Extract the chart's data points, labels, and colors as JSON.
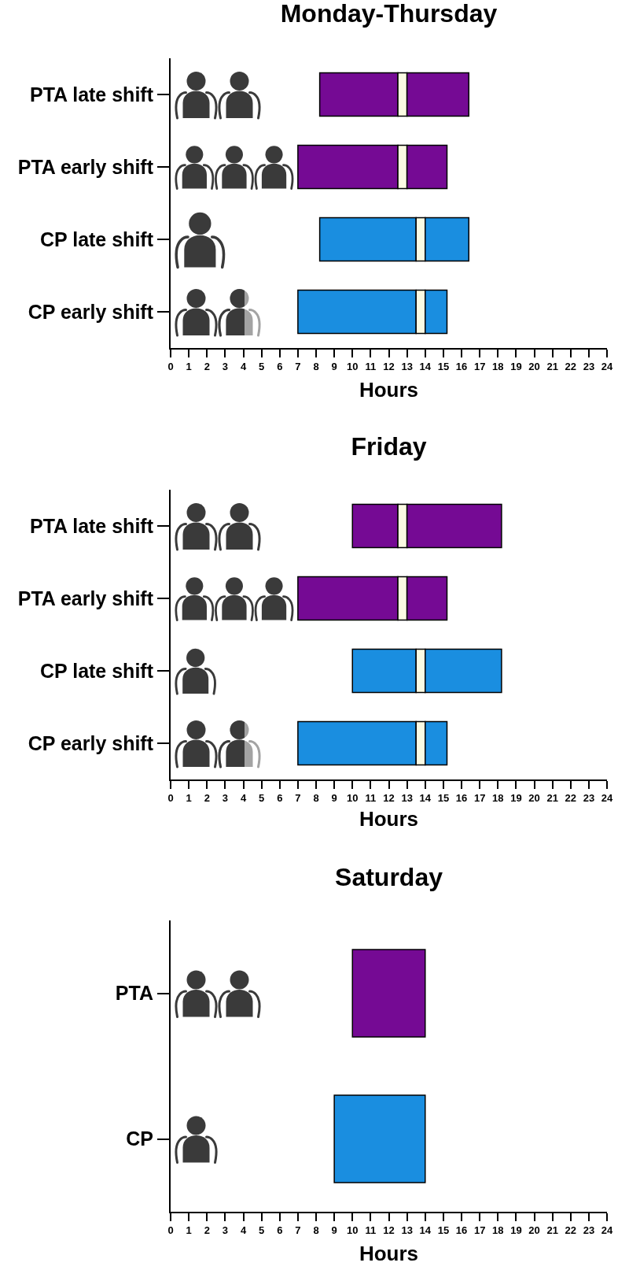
{
  "chart_data": [
    {
      "type": "bar",
      "title": "Monday-Thursday",
      "xlabel": "Hours",
      "orientation": "horizontal",
      "categories": [
        "PTA late shift",
        "PTA early shift",
        "CP late shift",
        "CP early shift"
      ],
      "series": [
        {
          "colors": [
            "#750a94",
            "#750a94",
            "#1a8ee0",
            "#1a8ee0"
          ],
          "base": [
            8.2,
            7,
            8.2,
            7
          ],
          "values": [
            4.3,
            5.5,
            5.3,
            6.5
          ]
        },
        {
          "color": "#fbfbe3",
          "base": [
            12.5,
            12.5,
            13.5,
            13.5
          ],
          "values": [
            0.5,
            0.5,
            0.5,
            0.5
          ]
        },
        {
          "colors": [
            "#750a94",
            "#750a94",
            "#1a8ee0",
            "#1a8ee0"
          ],
          "base": [
            13,
            13,
            14,
            14
          ],
          "values": [
            3.4,
            2.2,
            2.4,
            1.2
          ]
        }
      ],
      "xlim": [
        0,
        24
      ],
      "xticks": [
        0,
        1,
        2,
        3,
        4,
        5,
        6,
        7,
        8,
        9,
        10,
        11,
        12,
        13,
        14,
        15,
        16,
        17,
        18,
        19,
        20,
        21,
        22,
        23,
        24
      ]
    },
    {
      "type": "bar",
      "title": "Friday",
      "xlabel": "Hours",
      "orientation": "horizontal",
      "categories": [
        "PTA late shift",
        "PTA early shift",
        "CP late shift",
        "CP early shift"
      ],
      "series": [
        {
          "colors": [
            "#750a94",
            "#750a94",
            "#1a8ee0",
            "#1a8ee0"
          ],
          "base": [
            10,
            7,
            10,
            7
          ],
          "values": [
            2.5,
            5.5,
            3.5,
            6.5
          ]
        },
        {
          "color": "#fbfbe3",
          "base": [
            12.5,
            12.5,
            13.5,
            13.5
          ],
          "values": [
            0.5,
            0.5,
            0.5,
            0.5
          ]
        },
        {
          "colors": [
            "#750a94",
            "#750a94",
            "#1a8ee0",
            "#1a8ee0"
          ],
          "base": [
            13,
            13,
            14,
            14
          ],
          "values": [
            5.2,
            2.2,
            4.2,
            1.2
          ]
        }
      ],
      "xlim": [
        0,
        24
      ],
      "xticks": [
        0,
        1,
        2,
        3,
        4,
        5,
        6,
        7,
        8,
        9,
        10,
        11,
        12,
        13,
        14,
        15,
        16,
        17,
        18,
        19,
        20,
        21,
        22,
        23,
        24
      ]
    },
    {
      "type": "bar",
      "title": "Saturday",
      "xlabel": "Hours",
      "orientation": "horizontal",
      "categories": [
        "PTA",
        "CP"
      ],
      "base": [
        10,
        9
      ],
      "values": [
        4,
        5
      ],
      "colors": [
        "#750a94",
        "#1a8ee0"
      ],
      "xlim": [
        0,
        24
      ],
      "xticks": [
        0,
        1,
        2,
        3,
        4,
        5,
        6,
        7,
        8,
        9,
        10,
        11,
        12,
        13,
        14,
        15,
        16,
        17,
        18,
        19,
        20,
        21,
        22,
        23,
        24
      ]
    }
  ]
}
